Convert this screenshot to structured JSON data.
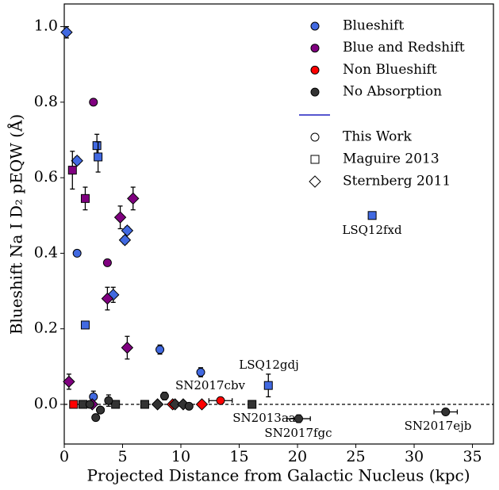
{
  "chart_data": {
    "type": "scatter",
    "xlabel": "Projected Distance from Galactic Nucleus (kpc)",
    "ylabel": "Blueshift Na I D₂ pEQW (Å)",
    "xlim": [
      0,
      36.8
    ],
    "ylim": [
      -0.105,
      1.06
    ],
    "xticks": [
      0,
      5,
      10,
      15,
      20,
      25,
      30,
      35
    ],
    "yticks": [
      {
        "value": 0,
        "label": "0.0"
      },
      0.2,
      0.4,
      0.6,
      0.8,
      {
        "value": 1,
        "label": "1.0"
      }
    ],
    "reference_line": 0,
    "legend": "upper right",
    "series": [
      {
        "name": "Blueshift",
        "color": "#4169e1",
        "x": [
          0.2,
          1.1,
          1.1,
          1.8,
          2.8,
          2.9,
          2.5,
          4.2,
          5.4,
          5.2,
          8.2,
          11.7,
          17.5,
          26.4
        ],
        "values": [
          0.985,
          0.645,
          0.4,
          0.21,
          0.685,
          0.655,
          0.02,
          0.29,
          0.46,
          0.435,
          0.145,
          0.085,
          0.05,
          0.5
        ],
        "errors": [
          0.015,
          0.01,
          null,
          0.005,
          0.03,
          0.04,
          0.015,
          0.02,
          0.01,
          0.01,
          0.012,
          0.012,
          0.03,
          0.005
        ],
        "markers": [
          "diamond",
          "diamond",
          "circle",
          "square",
          "square",
          "square",
          "circle",
          "diamond",
          "diamond",
          "diamond",
          "circle",
          "circle",
          "square",
          "square"
        ]
      },
      {
        "name": "Blue and Redshift",
        "color": "#800080",
        "x": [
          0.4,
          0.7,
          2.5,
          1.8,
          3.7,
          3.7,
          4.8,
          5.9,
          5.4,
          2.4
        ],
        "values": [
          0.06,
          0.62,
          0.8,
          0.545,
          0.28,
          0.375,
          0.495,
          0.545,
          0.15,
          0.0
        ],
        "errors": [
          0.02,
          0.05,
          null,
          0.03,
          0.03,
          null,
          0.03,
          0.03,
          0.03,
          null
        ],
        "markers": [
          "diamond",
          "square",
          "circle",
          "square",
          "diamond",
          "circle",
          "diamond",
          "diamond",
          "diamond",
          "diamond"
        ]
      },
      {
        "name": "Non Blueshift",
        "color": "#ff0000",
        "x": [
          0.8,
          3.1,
          9.3,
          11.8,
          13.4
        ],
        "values": [
          0.0,
          -0.015,
          0.0,
          0.0,
          0.01
        ],
        "errors": [
          null,
          null,
          null,
          null,
          null
        ],
        "xerrors": [
          null,
          null,
          null,
          null,
          1.0
        ],
        "markers": [
          "square",
          "circle",
          "diamond",
          "diamond",
          "circle"
        ]
      },
      {
        "name": "No Absorption",
        "color": "#333333",
        "x": [
          1.6,
          2.2,
          4.4,
          3.8,
          3.1,
          2.7,
          6.9,
          8.0,
          8.6,
          9.5,
          10.2,
          10.7,
          16.1,
          20.1,
          32.7
        ],
        "values": [
          0.0,
          0.0,
          0.0,
          0.01,
          -0.015,
          -0.035,
          0.0,
          0.0,
          0.022,
          0.0,
          0.0,
          -0.005,
          0.0,
          -0.038,
          -0.02
        ],
        "errors": [
          null,
          null,
          null,
          0.015,
          null,
          null,
          null,
          null,
          0.01,
          null,
          null,
          null,
          null,
          0.01,
          null
        ],
        "xerrors": [
          null,
          null,
          null,
          null,
          null,
          null,
          null,
          null,
          null,
          null,
          null,
          null,
          null,
          1.0,
          1.0
        ],
        "markers": [
          "square",
          "circle",
          "square",
          "circle",
          "circle",
          "circle",
          "square",
          "diamond",
          "circle",
          "diamond",
          "diamond",
          "circle",
          "square",
          "circle",
          "circle"
        ]
      }
    ],
    "marker_legend": [
      {
        "name": "This Work",
        "marker": "circle"
      },
      {
        "name": "Maguire 2013",
        "marker": "square"
      },
      {
        "name": "Sternberg 2011",
        "marker": "diamond"
      }
    ],
    "annotations": [
      "LSQ12fxd",
      "LSQ12gdj",
      "SN2017cbv",
      "SN2013aa",
      "SN2017fgc",
      "SN2017ejb"
    ]
  }
}
